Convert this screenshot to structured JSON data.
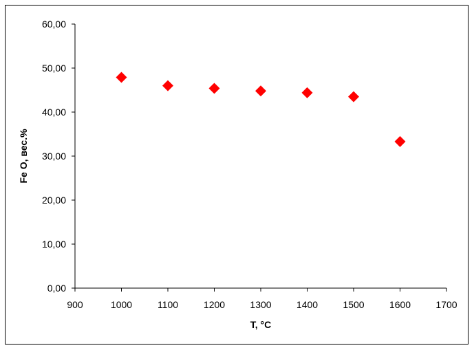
{
  "chart_data": {
    "type": "scatter",
    "title": "",
    "xlabel": "T, °C",
    "ylabel": "Fe O, вес.%",
    "xlim": [
      900,
      1700
    ],
    "ylim": [
      0,
      60
    ],
    "x_ticks": [
      900,
      1000,
      1100,
      1200,
      1300,
      1400,
      1500,
      1600,
      1700
    ],
    "x_tick_labels": [
      "900",
      "1000",
      "1100",
      "1200",
      "1300",
      "1400",
      "1500",
      "1600",
      "1700"
    ],
    "y_ticks": [
      0,
      10,
      20,
      30,
      40,
      50,
      60
    ],
    "y_tick_labels": [
      "0,00",
      "10,00",
      "20,00",
      "30,00",
      "40,00",
      "50,00",
      "60,00"
    ],
    "grid": false,
    "legend": "none",
    "marker": "diamond",
    "marker_color": "#ff0000",
    "series": [
      {
        "x": [
          1000,
          1100,
          1200,
          1300,
          1400,
          1500,
          1600
        ],
        "y": [
          47.9,
          46.0,
          45.4,
          44.8,
          44.4,
          43.5,
          33.3
        ]
      }
    ]
  }
}
